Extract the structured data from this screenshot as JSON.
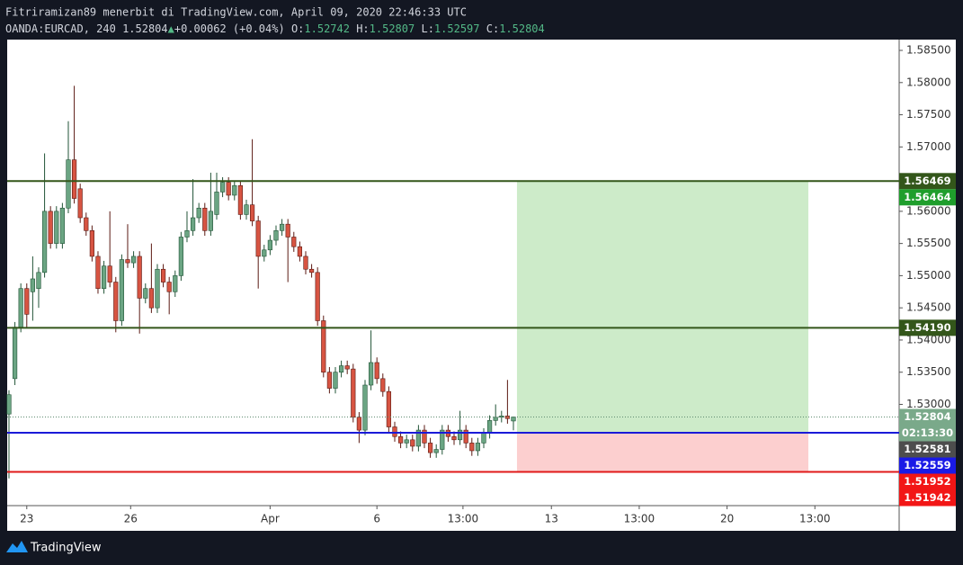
{
  "header": {
    "line1": "Fitriramizan89 menerbit di TradingView.com, April 09, 2020 22:46:33 UTC",
    "symbol": "OANDA:EURCAD, 240",
    "price": "1.52804",
    "arrow": "▲",
    "change": "+0.00062 (+0.04%)",
    "ohlc": [
      {
        "key": "O:",
        "value": "1.52742"
      },
      {
        "key": "H:",
        "value": "1.52807"
      },
      {
        "key": "L:",
        "value": "1.52597"
      },
      {
        "key": "C:",
        "value": "1.52804"
      }
    ]
  },
  "footer": {
    "brand": "TradingView"
  },
  "chart_data": {
    "type": "candlestick",
    "up_color": "#6ba583",
    "down_color": "#d75442",
    "up_border": "#225437",
    "down_border": "#5b1a13",
    "xlim": [
      -0.3,
      150
    ],
    "ylim": [
      1.51427,
      1.58668
    ],
    "xticks": [
      {
        "value": 3,
        "label": "23"
      },
      {
        "value": 20.5,
        "label": "26"
      },
      {
        "value": 44,
        "label": "Apr"
      },
      {
        "value": 62,
        "label": "6"
      },
      {
        "value": 76.5,
        "label": "13:00"
      },
      {
        "value": 91.4,
        "label": "13"
      },
      {
        "value": 106.2,
        "label": "13:00"
      },
      {
        "value": 121,
        "label": "20"
      },
      {
        "value": 135.8,
        "label": "13:00"
      }
    ],
    "yticks": [
      {
        "value": 1.585,
        "label": "1.58500"
      },
      {
        "value": 1.58,
        "label": "1.58000"
      },
      {
        "value": 1.575,
        "label": "1.57500"
      },
      {
        "value": 1.57,
        "label": "1.57000"
      },
      {
        "value": 1.56,
        "label": "1.56000"
      },
      {
        "value": 1.555,
        "label": "1.55500"
      },
      {
        "value": 1.55,
        "label": "1.55000"
      },
      {
        "value": 1.545,
        "label": "1.54500"
      },
      {
        "value": 1.54,
        "label": "1.54000"
      },
      {
        "value": 1.535,
        "label": "1.53500"
      },
      {
        "value": 1.53,
        "label": "1.53000"
      }
    ],
    "open": [
      1.5285,
      1.534,
      1.542,
      1.548,
      1.5475,
      1.548,
      1.5505,
      1.56,
      1.555,
      1.555,
      1.5605,
      1.568,
      1.5635,
      1.559,
      1.557,
      1.553,
      1.548,
      1.5515,
      1.549,
      1.543,
      1.5525,
      1.552,
      1.553,
      1.5465,
      1.548,
      1.545,
      1.551,
      1.549,
      1.5475,
      1.55,
      1.556,
      1.557,
      1.559,
      1.5605,
      1.557,
      1.5595,
      1.563,
      1.5645,
      1.5625,
      1.564,
      1.5595,
      1.561,
      1.5585,
      1.553,
      1.554,
      1.5555,
      1.557,
      1.558,
      1.556,
      1.5545,
      1.553,
      1.551,
      1.5505,
      1.543,
      1.535,
      1.5325,
      1.535,
      1.536,
      1.5355,
      1.528,
      1.526,
      1.533,
      1.5365,
      1.534,
      1.532,
      1.5265,
      1.525,
      1.524,
      1.5245,
      1.5235,
      1.526,
      1.524,
      1.5225,
      1.523,
      1.526,
      1.525,
      1.5245,
      1.526,
      1.524,
      1.5228,
      1.524,
      1.5255,
      1.5275,
      1.528,
      1.5282,
      1.52742
    ],
    "high": [
      1.5322,
      1.5428,
      1.5488,
      1.5488,
      1.553,
      1.5513,
      1.569,
      1.5608,
      1.5608,
      1.5613,
      1.574,
      1.5795,
      1.5643,
      1.5598,
      1.5578,
      1.5538,
      1.5523,
      1.56,
      1.5498,
      1.5533,
      1.558,
      1.5538,
      1.5538,
      1.5488,
      1.555,
      1.5518,
      1.5518,
      1.5498,
      1.5508,
      1.5568,
      1.56,
      1.565,
      1.5613,
      1.5613,
      1.566,
      1.566,
      1.5653,
      1.5653,
      1.5648,
      1.5648,
      1.5618,
      1.5712,
      1.5593,
      1.5548,
      1.5563,
      1.5578,
      1.5588,
      1.5588,
      1.5568,
      1.5553,
      1.5538,
      1.5518,
      1.5513,
      1.5438,
      1.5358,
      1.5358,
      1.5368,
      1.5368,
      1.5363,
      1.5288,
      1.5338,
      1.5415,
      1.5373,
      1.5348,
      1.5328,
      1.5273,
      1.5258,
      1.5253,
      1.5253,
      1.5268,
      1.5268,
      1.5248,
      1.5238,
      1.5268,
      1.5268,
      1.5258,
      1.529,
      1.5268,
      1.5248,
      1.5248,
      1.5263,
      1.5283,
      1.53,
      1.529,
      1.5338,
      1.52807
    ],
    "low": [
      1.5185,
      1.533,
      1.5412,
      1.5418,
      1.543,
      1.545,
      1.5497,
      1.5542,
      1.5542,
      1.5542,
      1.5597,
      1.5612,
      1.5582,
      1.5562,
      1.5522,
      1.5472,
      1.5472,
      1.5482,
      1.5412,
      1.5422,
      1.5512,
      1.5512,
      1.541,
      1.5457,
      1.5442,
      1.5442,
      1.5482,
      1.544,
      1.5467,
      1.5492,
      1.5552,
      1.5562,
      1.5582,
      1.5562,
      1.5562,
      1.5587,
      1.5622,
      1.5617,
      1.5617,
      1.5587,
      1.5587,
      1.5577,
      1.548,
      1.5522,
      1.5532,
      1.5547,
      1.5562,
      1.549,
      1.5537,
      1.5522,
      1.5502,
      1.5497,
      1.5422,
      1.5342,
      1.5317,
      1.5317,
      1.5342,
      1.5347,
      1.5272,
      1.524,
      1.5252,
      1.5322,
      1.5332,
      1.5312,
      1.5257,
      1.5242,
      1.5232,
      1.5232,
      1.5227,
      1.5227,
      1.5232,
      1.5217,
      1.5217,
      1.5222,
      1.5242,
      1.5237,
      1.5237,
      1.5232,
      1.522,
      1.522,
      1.5232,
      1.5247,
      1.5267,
      1.5272,
      1.527,
      1.52597
    ],
    "close": [
      1.5315,
      1.542,
      1.548,
      1.544,
      1.5495,
      1.5505,
      1.56,
      1.555,
      1.56,
      1.5605,
      1.568,
      1.562,
      1.559,
      1.557,
      1.553,
      1.548,
      1.5515,
      1.549,
      1.543,
      1.5525,
      1.552,
      1.553,
      1.5465,
      1.548,
      1.545,
      1.551,
      1.549,
      1.5475,
      1.55,
      1.556,
      1.557,
      1.559,
      1.5605,
      1.557,
      1.56,
      1.563,
      1.5645,
      1.5625,
      1.564,
      1.5595,
      1.561,
      1.5585,
      1.553,
      1.554,
      1.5555,
      1.557,
      1.558,
      1.556,
      1.5545,
      1.553,
      1.551,
      1.5505,
      1.543,
      1.535,
      1.5325,
      1.535,
      1.536,
      1.5355,
      1.528,
      1.526,
      1.533,
      1.5365,
      1.534,
      1.532,
      1.5265,
      1.525,
      1.524,
      1.5245,
      1.5235,
      1.526,
      1.524,
      1.5225,
      1.523,
      1.526,
      1.525,
      1.5245,
      1.526,
      1.524,
      1.5228,
      1.524,
      1.5255,
      1.5275,
      1.528,
      1.5282,
      1.5278,
      1.52804
    ],
    "position": {
      "xlim": [
        85.6,
        134.7
      ],
      "target": 1.56469,
      "entry": 1.52559,
      "stop": 1.51952,
      "profit_color": "#cdebc9",
      "loss_color": "#fccfcf"
    },
    "lines": [
      {
        "price": 1.56469,
        "color": "#33561a"
      },
      {
        "price": 1.5419,
        "color": "#33561a"
      },
      {
        "price": 1.52559,
        "color": "#1a1ad8"
      },
      {
        "price": 1.51952,
        "color": "#e01a1a"
      }
    ],
    "last_price": {
      "price": 1.52804,
      "color": "#5d8a6f"
    },
    "price_labels": [
      {
        "value": 1.56469,
        "bg": "#33561a"
      },
      {
        "value": 1.56464,
        "bg": "#1f9e2c"
      },
      {
        "value": 1.5419,
        "label": "1.54190",
        "bg": "#33561a"
      },
      {
        "value": 1.52804,
        "bg": "#7aa98a"
      },
      {
        "label": "02:13:30",
        "bg": "#7aa98a"
      },
      {
        "value": 1.52581,
        "bg": "#4d4d4d"
      },
      {
        "value": 1.52559,
        "bg": "#1a1ae6"
      },
      {
        "value": 1.51952,
        "bg": "#f21616"
      },
      {
        "value": 1.51942,
        "bg": "#f21616"
      }
    ]
  }
}
